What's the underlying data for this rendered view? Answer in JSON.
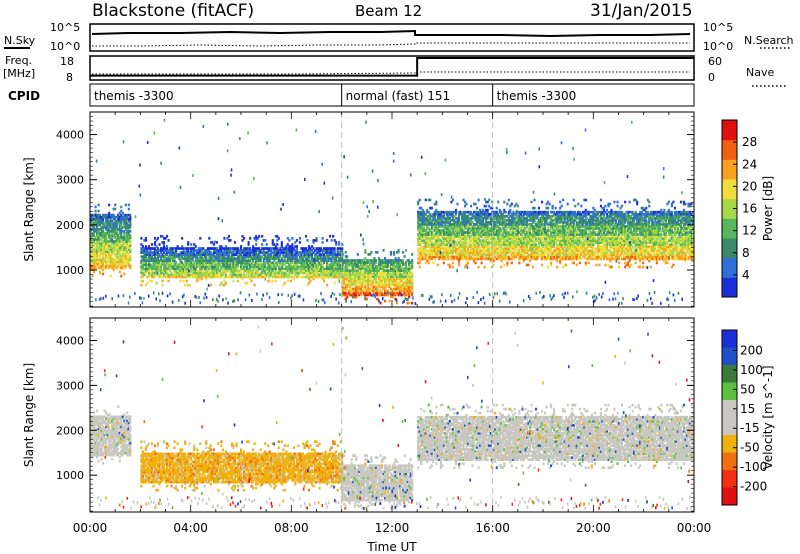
{
  "header": {
    "station": "Blackstone (fitACF)",
    "beam": "Beam 12",
    "date": "31/Jan/2015"
  },
  "summary_panels": {
    "nsky": {
      "label": "N.Sky",
      "left_ticks": [
        "10^5",
        "10^0"
      ],
      "right_ticks": [
        "10^5",
        "10^0"
      ],
      "right_label": "N.Search"
    },
    "freq": {
      "label_line1": "Freq.",
      "label_line2": "[MHz]",
      "left_ticks": [
        "18",
        "8"
      ],
      "right_ticks": [
        "60",
        "0"
      ],
      "right_label": "Nave",
      "levels": [
        {
          "from_hour": 0,
          "to_hour": 13,
          "freq_mhz": 10
        },
        {
          "from_hour": 13,
          "to_hour": 24,
          "freq_mhz": 18
        }
      ]
    },
    "cpid": {
      "label": "CPID",
      "segments": [
        {
          "name": "themis -3300",
          "from_hour": 0,
          "to_hour": 10
        },
        {
          "name": "normal (fast) 151",
          "from_hour": 10,
          "to_hour": 16
        },
        {
          "name": "themis -3300",
          "from_hour": 16,
          "to_hour": 24
        }
      ]
    }
  },
  "colors": {
    "power": [
      "#1a30d6",
      "#2f6fd8",
      "#3a8a6a",
      "#56b85a",
      "#a6d84a",
      "#f0dc3a",
      "#f8a020",
      "#f06010",
      "#e01010"
    ],
    "velocity": [
      "#1a30d6",
      "#2050c8",
      "#3a7a3a",
      "#5cc040",
      "#c8c8c0",
      "#c8c8c0",
      "#f0b010",
      "#f07010",
      "#f03010",
      "#e01010"
    ],
    "gate_fill": "#c8c8c0"
  },
  "chart_data": [
    {
      "type": "heatmap",
      "quantity": "Power",
      "xlabel": "Time UT",
      "ylabel": "Slant Range [km]",
      "xlim_hours": [
        0,
        24
      ],
      "ylim_km": [
        180,
        4500
      ],
      "x_ticks": [
        "00:00",
        "04:00",
        "08:00",
        "12:00",
        "16:00",
        "20:00",
        "00:00"
      ],
      "y_ticks": [
        1000,
        2000,
        3000,
        4000
      ],
      "colorbar": {
        "label": "Power [dB]",
        "range": [
          0,
          32
        ],
        "ticks": [
          4,
          8,
          12,
          16,
          20,
          24,
          28
        ]
      },
      "echo_bands": [
        {
          "from_hour": 0.0,
          "to_hour": 1.6,
          "range_km_low": 1000,
          "range_km_high": 2200,
          "power_db": 22
        },
        {
          "from_hour": 2.0,
          "to_hour": 10.0,
          "range_km_low": 800,
          "range_km_high": 1500,
          "power_db": 20
        },
        {
          "from_hour": 10.0,
          "to_hour": 12.8,
          "range_km_low": 400,
          "range_km_high": 1200,
          "power_db": 26
        },
        {
          "from_hour": 13.0,
          "to_hour": 24.0,
          "range_km_low": 1200,
          "range_km_high": 2300,
          "power_db": 24
        }
      ],
      "grid": "vertical dashed at 10:00 and 16:00"
    },
    {
      "type": "heatmap",
      "quantity": "Velocity",
      "xlabel": "Time UT",
      "ylabel": "Slant Range [km]",
      "xlim_hours": [
        0,
        24
      ],
      "ylim_km": [
        180,
        4500
      ],
      "x_ticks": [
        "00:00",
        "04:00",
        "08:00",
        "12:00",
        "16:00",
        "20:00",
        "00:00"
      ],
      "y_ticks": [
        1000,
        2000,
        3000,
        4000
      ],
      "colorbar": {
        "label": "Velocity [m s^-1]",
        "range": [
          -250,
          250
        ],
        "ticks": [
          "200",
          "100",
          "50",
          "15",
          "-15",
          "-50",
          "-100",
          "-200"
        ]
      },
      "echo_bands": [
        {
          "from_hour": 0.0,
          "to_hour": 1.6,
          "range_km_low": 1400,
          "range_km_high": 2300,
          "velocity": 0
        },
        {
          "from_hour": 2.0,
          "to_hour": 10.0,
          "range_km_low": 800,
          "range_km_high": 1500,
          "velocity": -40
        },
        {
          "from_hour": 10.0,
          "to_hour": 12.8,
          "range_km_low": 400,
          "range_km_high": 1200,
          "velocity": 0
        },
        {
          "from_hour": 13.0,
          "to_hour": 24.0,
          "range_km_low": 1300,
          "range_km_high": 2300,
          "velocity": 0
        }
      ],
      "grid": "vertical dashed at 10:00 and 16:00"
    }
  ]
}
